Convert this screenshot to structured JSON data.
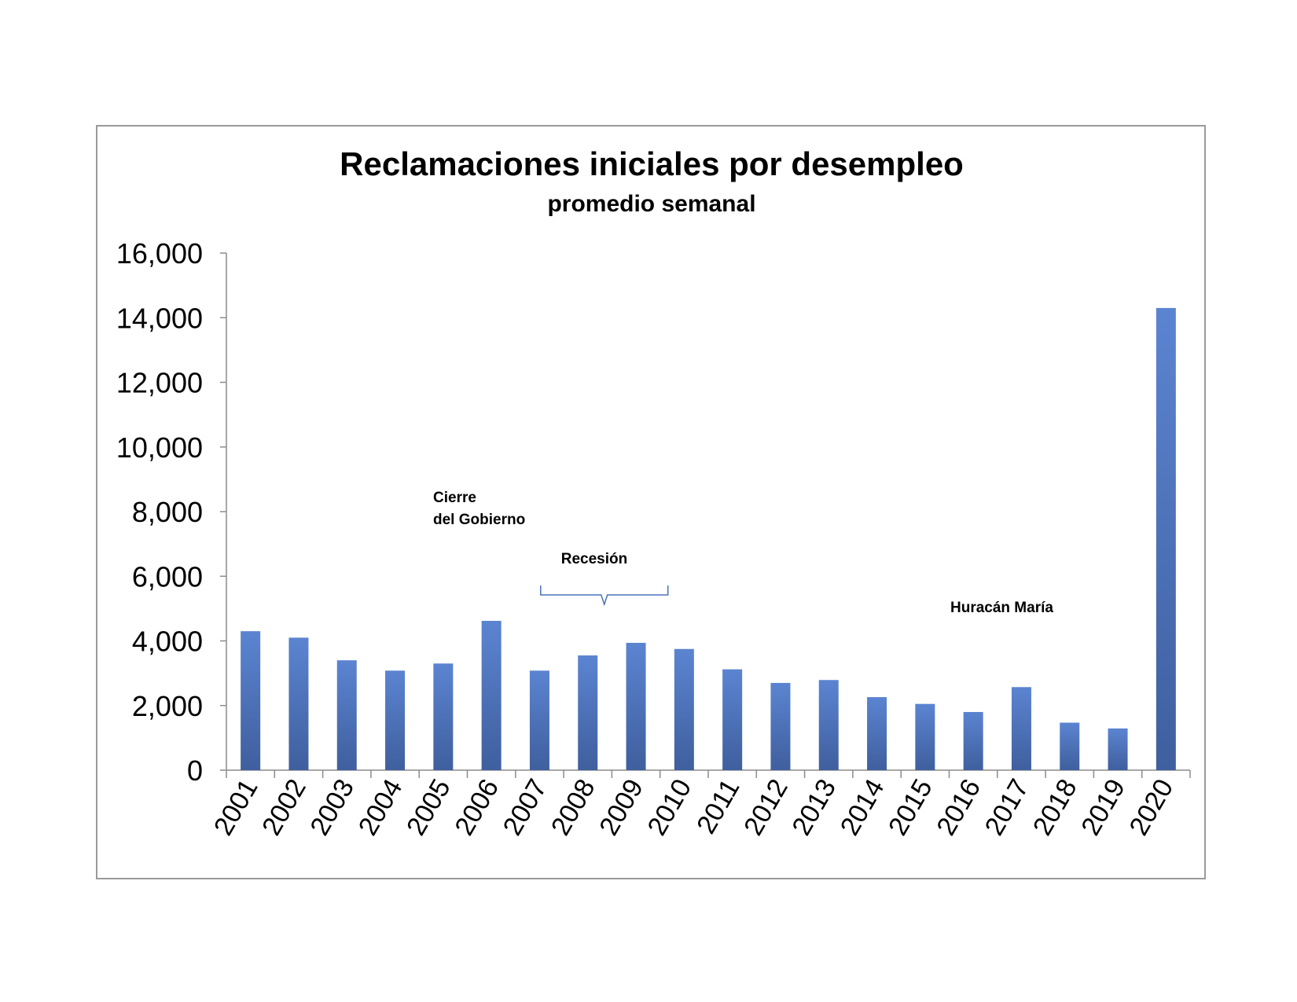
{
  "chart_data": {
    "type": "bar",
    "title": "Reclamaciones iniciales por desempleo",
    "subtitle": "promedio semanal",
    "xlabel": "",
    "ylabel": "",
    "ylim": [
      0,
      16000
    ],
    "yticks": [
      "0",
      "2,000",
      "4,000",
      "6,000",
      "8,000",
      "10,000",
      "12,000",
      "14,000",
      "16,000"
    ],
    "grid": false,
    "legend": "none",
    "categories": [
      "2001",
      "2002",
      "2003",
      "2004",
      "2005",
      "2006",
      "2007",
      "2008",
      "2009",
      "2010",
      "2011",
      "2012",
      "2013",
      "2014",
      "2015",
      "2016",
      "2017",
      "2018",
      "2019",
      "2020"
    ],
    "values": [
      4300,
      4100,
      3400,
      3080,
      3300,
      4620,
      3080,
      3550,
      3940,
      3750,
      3120,
      2700,
      2790,
      2260,
      2050,
      1800,
      2570,
      1470,
      1290,
      14300
    ],
    "bar_color_top": "#5b84d1",
    "bar_color_bottom": "#3f5f9e",
    "annotations": [
      {
        "lines": [
          "Cierre",
          "del Gobierno"
        ],
        "near": "2006"
      },
      {
        "lines": [
          "Recesión"
        ],
        "near": "2008-2010",
        "bracket_from": "2007",
        "bracket_to": "2010"
      },
      {
        "lines": [
          "Huracán María"
        ],
        "near": "2017"
      }
    ]
  }
}
